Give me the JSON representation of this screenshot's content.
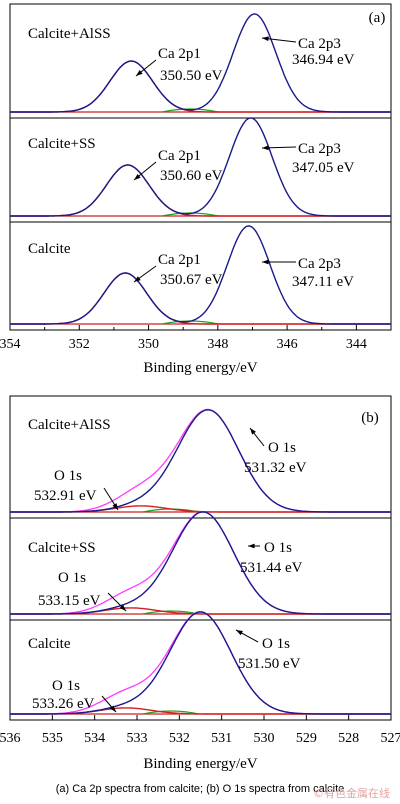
{
  "caption": "(a)  Ca  2p  spectra  from  calcite;  (b) O 1s spectra from calcite",
  "watermark": "©有色金属在线",
  "colors": {
    "envelope": "#1a1a8c",
    "fit": "#d42020",
    "component2": "#ff3cff",
    "green": "#18a018",
    "baseline": "#cc2020",
    "axis": "#000000"
  },
  "chart_data": [
    {
      "type": "line",
      "panel_label": "(a)",
      "xlabel": "Binding energy/eV",
      "xlim": [
        354,
        343
      ],
      "xticks": [
        354,
        352,
        350,
        348,
        346,
        344
      ],
      "x_reversed": true,
      "y_ticks_shown": false,
      "stacks": [
        {
          "name": "Calcite+AlSS",
          "peaks": [
            {
              "label": "Ca 2p1",
              "energy_label": "350.50 eV",
              "x": 350.5,
              "rel_height": 0.52,
              "fwhm": 1.45
            },
            {
              "label": "Ca 2p3",
              "energy_label": "346.94 eV",
              "x": 346.94,
              "rel_height": 1.0,
              "fwhm": 1.45
            }
          ]
        },
        {
          "name": "Calcite+SS",
          "peaks": [
            {
              "label": "Ca 2p1",
              "energy_label": "350.60 eV",
              "x": 350.6,
              "rel_height": 0.52,
              "fwhm": 1.45
            },
            {
              "label": "Ca 2p3",
              "energy_label": "347.05 eV",
              "x": 347.05,
              "rel_height": 1.0,
              "fwhm": 1.45
            }
          ]
        },
        {
          "name": "Calcite",
          "peaks": [
            {
              "label": "Ca 2p1",
              "energy_label": "350.67 eV",
              "x": 350.67,
              "rel_height": 0.52,
              "fwhm": 1.45
            },
            {
              "label": "Ca 2p3",
              "energy_label": "347.11 eV",
              "x": 347.11,
              "rel_height": 1.0,
              "fwhm": 1.45
            }
          ]
        }
      ]
    },
    {
      "type": "line",
      "panel_label": "(b)",
      "xlabel": "Binding energy/eV",
      "xlim": [
        536,
        527
      ],
      "xticks": [
        536,
        535,
        534,
        533,
        532,
        531,
        530,
        529,
        528,
        527
      ],
      "x_reversed": true,
      "y_ticks_shown": false,
      "stacks": [
        {
          "name": "Calcite+AlSS",
          "peaks": [
            {
              "label": "O 1s",
              "energy_label": "531.32 eV",
              "x": 531.32,
              "rel_height": 1.0,
              "fwhm": 1.7
            },
            {
              "label": "O 1s",
              "energy_label": "532.91 eV",
              "x": 532.91,
              "rel_height": 0.06,
              "fwhm": 1.4
            }
          ]
        },
        {
          "name": "Calcite+SS",
          "peaks": [
            {
              "label": "O 1s",
              "energy_label": "531.44 eV",
              "x": 531.44,
              "rel_height": 1.0,
              "fwhm": 1.7
            },
            {
              "label": "O 1s",
              "energy_label": "533.15 eV",
              "x": 533.15,
              "rel_height": 0.06,
              "fwhm": 1.4
            }
          ]
        },
        {
          "name": "Calcite",
          "peaks": [
            {
              "label": "O 1s",
              "energy_label": "531.50 eV",
              "x": 531.5,
              "rel_height": 1.0,
              "fwhm": 1.7
            },
            {
              "label": "O 1s",
              "energy_label": "533.26 eV",
              "x": 533.26,
              "rel_height": 0.06,
              "fwhm": 1.4
            }
          ]
        }
      ]
    }
  ]
}
